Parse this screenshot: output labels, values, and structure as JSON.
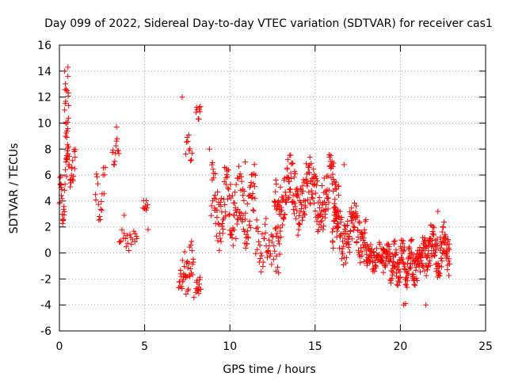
{
  "chart_data": {
    "type": "scatter",
    "title": "Day 099 of 2022, Sidereal Day-to-day VTEC variation (SDTVAR) for receiver cas1",
    "xlabel": "GPS time / hours",
    "ylabel": "SDTVAR / TECUs",
    "xlim": [
      0,
      25
    ],
    "ylim": [
      -6,
      16
    ],
    "x_ticks": [
      "0",
      "5",
      "10",
      "15",
      "20",
      "25"
    ],
    "y_ticks": [
      "-6",
      "-4",
      "-2",
      "0",
      "2",
      "4",
      "6",
      "8",
      "10",
      "12",
      "14",
      "16"
    ],
    "grid": true,
    "marker": "+",
    "color": "#ff0000",
    "series": [
      {
        "name": "SDTVAR",
        "segments": [
          {
            "x_start": 0.0,
            "x_end": 0.3,
            "count": 20,
            "y_center": 4.0,
            "spread": 0.8,
            "amp": 2.5,
            "period": 0.3
          },
          {
            "x_start": 0.3,
            "x_end": 0.55,
            "count": 22,
            "y_center": 10.0,
            "spread": 2.0,
            "amp": 3.5,
            "period": 0.25
          },
          {
            "x_start": 0.3,
            "x_end": 0.95,
            "count": 30,
            "y_center": 6.5,
            "spread": 1.0,
            "amp": 1.5,
            "period": 0.4
          },
          {
            "x_start": 2.1,
            "x_end": 2.7,
            "count": 18,
            "y_center": 4.5,
            "spread": 1.5,
            "amp": 1.5,
            "period": 0.5
          },
          {
            "x_start": 3.1,
            "x_end": 3.5,
            "count": 12,
            "y_center": 7.8,
            "spread": 0.8,
            "amp": 1.0,
            "period": 0.3
          },
          {
            "x_start": 3.5,
            "x_end": 4.6,
            "count": 20,
            "y_center": 1.1,
            "spread": 0.6,
            "amp": 0.6,
            "period": 0.6
          },
          {
            "x_start": 4.9,
            "x_end": 5.2,
            "count": 8,
            "y_center": 3.6,
            "spread": 0.6,
            "amp": 0.4,
            "period": 0.3
          },
          {
            "x_start": 7.0,
            "x_end": 7.9,
            "count": 40,
            "y_center": -1.2,
            "spread": 1.6,
            "amp": 1.5,
            "period": 0.4
          },
          {
            "x_start": 7.4,
            "x_end": 7.8,
            "count": 10,
            "y_center": 8.2,
            "spread": 0.8,
            "amp": 0.8,
            "period": 0.3
          },
          {
            "x_start": 8.0,
            "x_end": 8.3,
            "count": 14,
            "y_center": -2.6,
            "spread": 0.5,
            "amp": 0.4,
            "period": 0.2
          },
          {
            "x_start": 8.0,
            "x_end": 8.3,
            "count": 8,
            "y_center": 10.6,
            "spread": 0.5,
            "amp": 0.4,
            "period": 0.2
          },
          {
            "x_start": 8.9,
            "x_end": 11.5,
            "count": 140,
            "y_center": 3.5,
            "spread": 2.2,
            "amp": 2.2,
            "period": 0.8
          },
          {
            "x_start": 11.5,
            "x_end": 13.0,
            "count": 50,
            "y_center": 0.6,
            "spread": 1.6,
            "amp": 1.0,
            "period": 0.5
          },
          {
            "x_start": 12.6,
            "x_end": 16.4,
            "count": 230,
            "y_center": 4.4,
            "spread": 2.0,
            "amp": 2.2,
            "period": 1.2
          },
          {
            "x_start": 16.0,
            "x_end": 18.0,
            "count": 120,
            "y_center": 1.5,
            "spread": 1.6,
            "amp": 1.6,
            "period": 1.0
          },
          {
            "x_start": 18.0,
            "x_end": 19.4,
            "count": 90,
            "y_center": -0.3,
            "spread": 0.9,
            "amp": 0.6,
            "period": 0.6
          },
          {
            "x_start": 19.4,
            "x_end": 21.3,
            "count": 140,
            "y_center": -0.8,
            "spread": 1.3,
            "amp": 1.2,
            "period": 0.5
          },
          {
            "x_start": 21.3,
            "x_end": 22.9,
            "count": 120,
            "y_center": 0.2,
            "spread": 1.5,
            "amp": 1.2,
            "period": 0.7
          }
        ],
        "extra_points": [
          [
            0.5,
            14.3
          ],
          [
            0.5,
            13.6
          ],
          [
            0.45,
            12.5
          ],
          [
            0.4,
            12.6
          ],
          [
            7.2,
            12.0
          ],
          [
            8.8,
            8.0
          ],
          [
            3.35,
            9.7
          ],
          [
            3.8,
            2.9
          ],
          [
            5.2,
            1.8
          ],
          [
            8.2,
            11.2
          ],
          [
            20.2,
            -4.0
          ],
          [
            20.3,
            -3.9
          ],
          [
            21.5,
            -4.0
          ],
          [
            22.2,
            3.2
          ],
          [
            10.9,
            7.0
          ],
          [
            16.7,
            6.8
          ],
          [
            19.0,
            -1.5
          ],
          [
            12.7,
            -1.4
          ]
        ]
      }
    ]
  }
}
